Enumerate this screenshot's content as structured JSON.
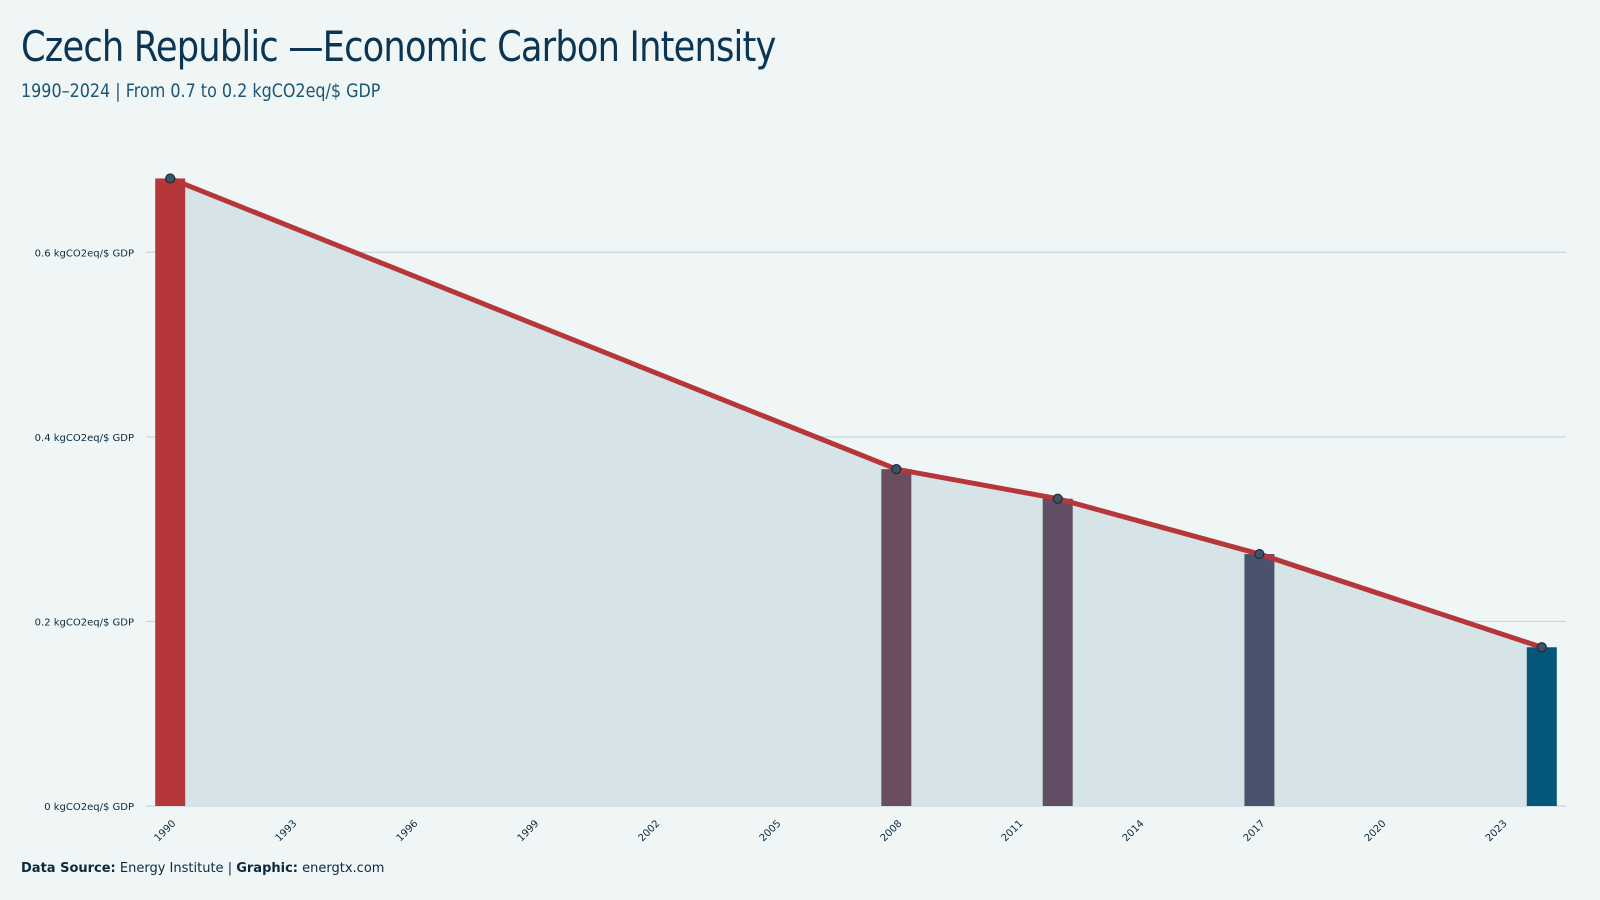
{
  "header": {
    "title": "Czech Republic —Economic Carbon Intensity",
    "subtitle": "1990–2024 | From 0.7 to 0.2 kgCO2eq/$ GDP"
  },
  "footer": {
    "source_label": "Data Source:",
    "source_value": "Energy Institute",
    "separator": "|",
    "graphic_label": "Graphic:",
    "graphic_value": "energtx.com"
  },
  "chart_data": {
    "type": "bar",
    "x": [
      1990,
      2008,
      2012,
      2017,
      2024
    ],
    "values": [
      0.68,
      0.365,
      0.333,
      0.273,
      0.172
    ],
    "bar_colors": [
      "#b5373a",
      "#6a4d61",
      "#614d64",
      "#4a526d",
      "#05577a"
    ],
    "line_color": "#b5373a",
    "area_color": "#d7e4e7",
    "ylim": [
      0,
      0.7
    ],
    "xlim": [
      1989.4,
      2024.6
    ],
    "yticks": [
      0,
      0.2,
      0.4,
      0.6
    ],
    "ytick_labels": [
      "0 kgCO2eq/$ GDP",
      "0.2 kgCO2eq/$ GDP",
      "0.4 kgCO2eq/$ GDP",
      "0.6 kgCO2eq/$ GDP"
    ],
    "xticks": [
      1990,
      1993,
      1996,
      1999,
      2002,
      2005,
      2008,
      2011,
      2014,
      2017,
      2020,
      2023
    ],
    "xtick_labels": [
      "1990",
      "1993",
      "1996",
      "1999",
      "2002",
      "2005",
      "2008",
      "2011",
      "2014",
      "2017",
      "2020",
      "2023"
    ],
    "grid": true,
    "legend": "none"
  }
}
